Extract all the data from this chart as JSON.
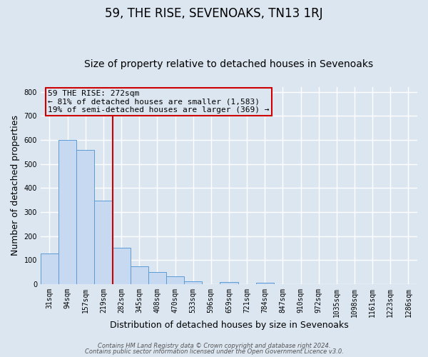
{
  "title": "59, THE RISE, SEVENOAKS, TN13 1RJ",
  "subtitle": "Size of property relative to detached houses in Sevenoaks",
  "xlabel": "Distribution of detached houses by size in Sevenoaks",
  "ylabel": "Number of detached properties",
  "bar_labels": [
    "31sqm",
    "94sqm",
    "157sqm",
    "219sqm",
    "282sqm",
    "345sqm",
    "408sqm",
    "470sqm",
    "533sqm",
    "596sqm",
    "659sqm",
    "721sqm",
    "784sqm",
    "847sqm",
    "910sqm",
    "972sqm",
    "1035sqm",
    "1098sqm",
    "1161sqm",
    "1223sqm",
    "1286sqm"
  ],
  "bar_values": [
    128,
    600,
    557,
    348,
    150,
    75,
    50,
    33,
    13,
    0,
    10,
    0,
    7,
    0,
    0,
    0,
    0,
    0,
    0,
    0,
    0
  ],
  "bar_color": "#c6d9f0",
  "bar_edge_color": "#5b9bd5",
  "vline_x": 3.5,
  "vline_color": "#cc0000",
  "annotation_line1": "59 THE RISE: 272sqm",
  "annotation_line2": "← 81% of detached houses are smaller (1,583)",
  "annotation_line3": "19% of semi-detached houses are larger (369) →",
  "annotation_box_color": "#cc0000",
  "ylim": [
    0,
    820
  ],
  "yticks": [
    0,
    100,
    200,
    300,
    400,
    500,
    600,
    700,
    800
  ],
  "footer_line1": "Contains HM Land Registry data © Crown copyright and database right 2024.",
  "footer_line2": "Contains public sector information licensed under the Open Government Licence v3.0.",
  "bg_color": "#dce6f1",
  "plot_bg_color": "#dce6f1",
  "grid_color": "#ffffff",
  "title_fontsize": 12,
  "subtitle_fontsize": 10,
  "label_fontsize": 9,
  "tick_fontsize": 7,
  "footer_fontsize": 6,
  "ann_fontsize": 8
}
